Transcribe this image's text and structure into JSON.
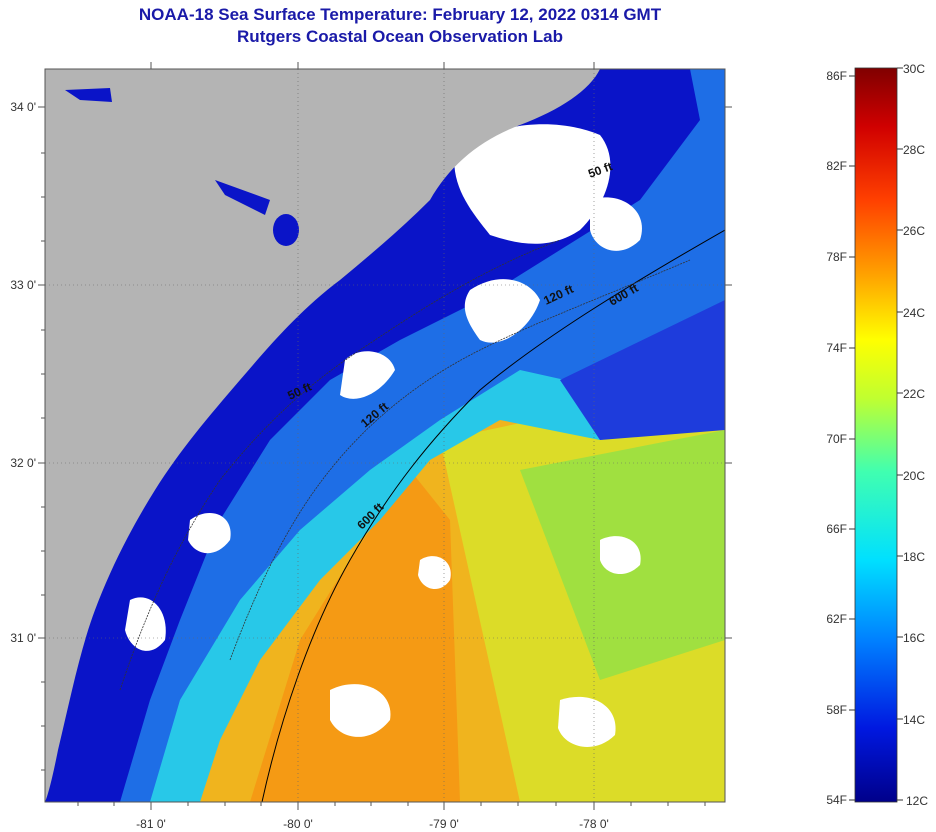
{
  "header": {
    "title": "NOAA-18 Sea Surface Temperature:  February 12, 2022 0314 GMT",
    "subtitle": "Rutgers Coastal Ocean Observation Lab"
  },
  "axes": {
    "lat_labels": [
      "34 0'",
      "33 0'",
      "32 0'",
      "31 0'"
    ],
    "lon_labels": [
      "-81 0'",
      "-80 0'",
      "-79 0'",
      "-78 0'"
    ]
  },
  "contours": {
    "labels": [
      "50 ft",
      "120 ft",
      "600 ft",
      "50 ft",
      "120 ft",
      "600 ft"
    ]
  },
  "colorbar": {
    "f_labels": [
      "86F",
      "82F",
      "78F",
      "74F",
      "70F",
      "66F",
      "62F",
      "58F",
      "54F"
    ],
    "c_labels": [
      "30C",
      "28C",
      "26C",
      "24C",
      "22C",
      "20C",
      "18C",
      "16C",
      "14C",
      "12C"
    ]
  },
  "colors": {
    "land": "#b4b4b4",
    "cloud": "#ffffff",
    "deep_blue": "#0a14c8",
    "title": "#1a1aa8"
  }
}
